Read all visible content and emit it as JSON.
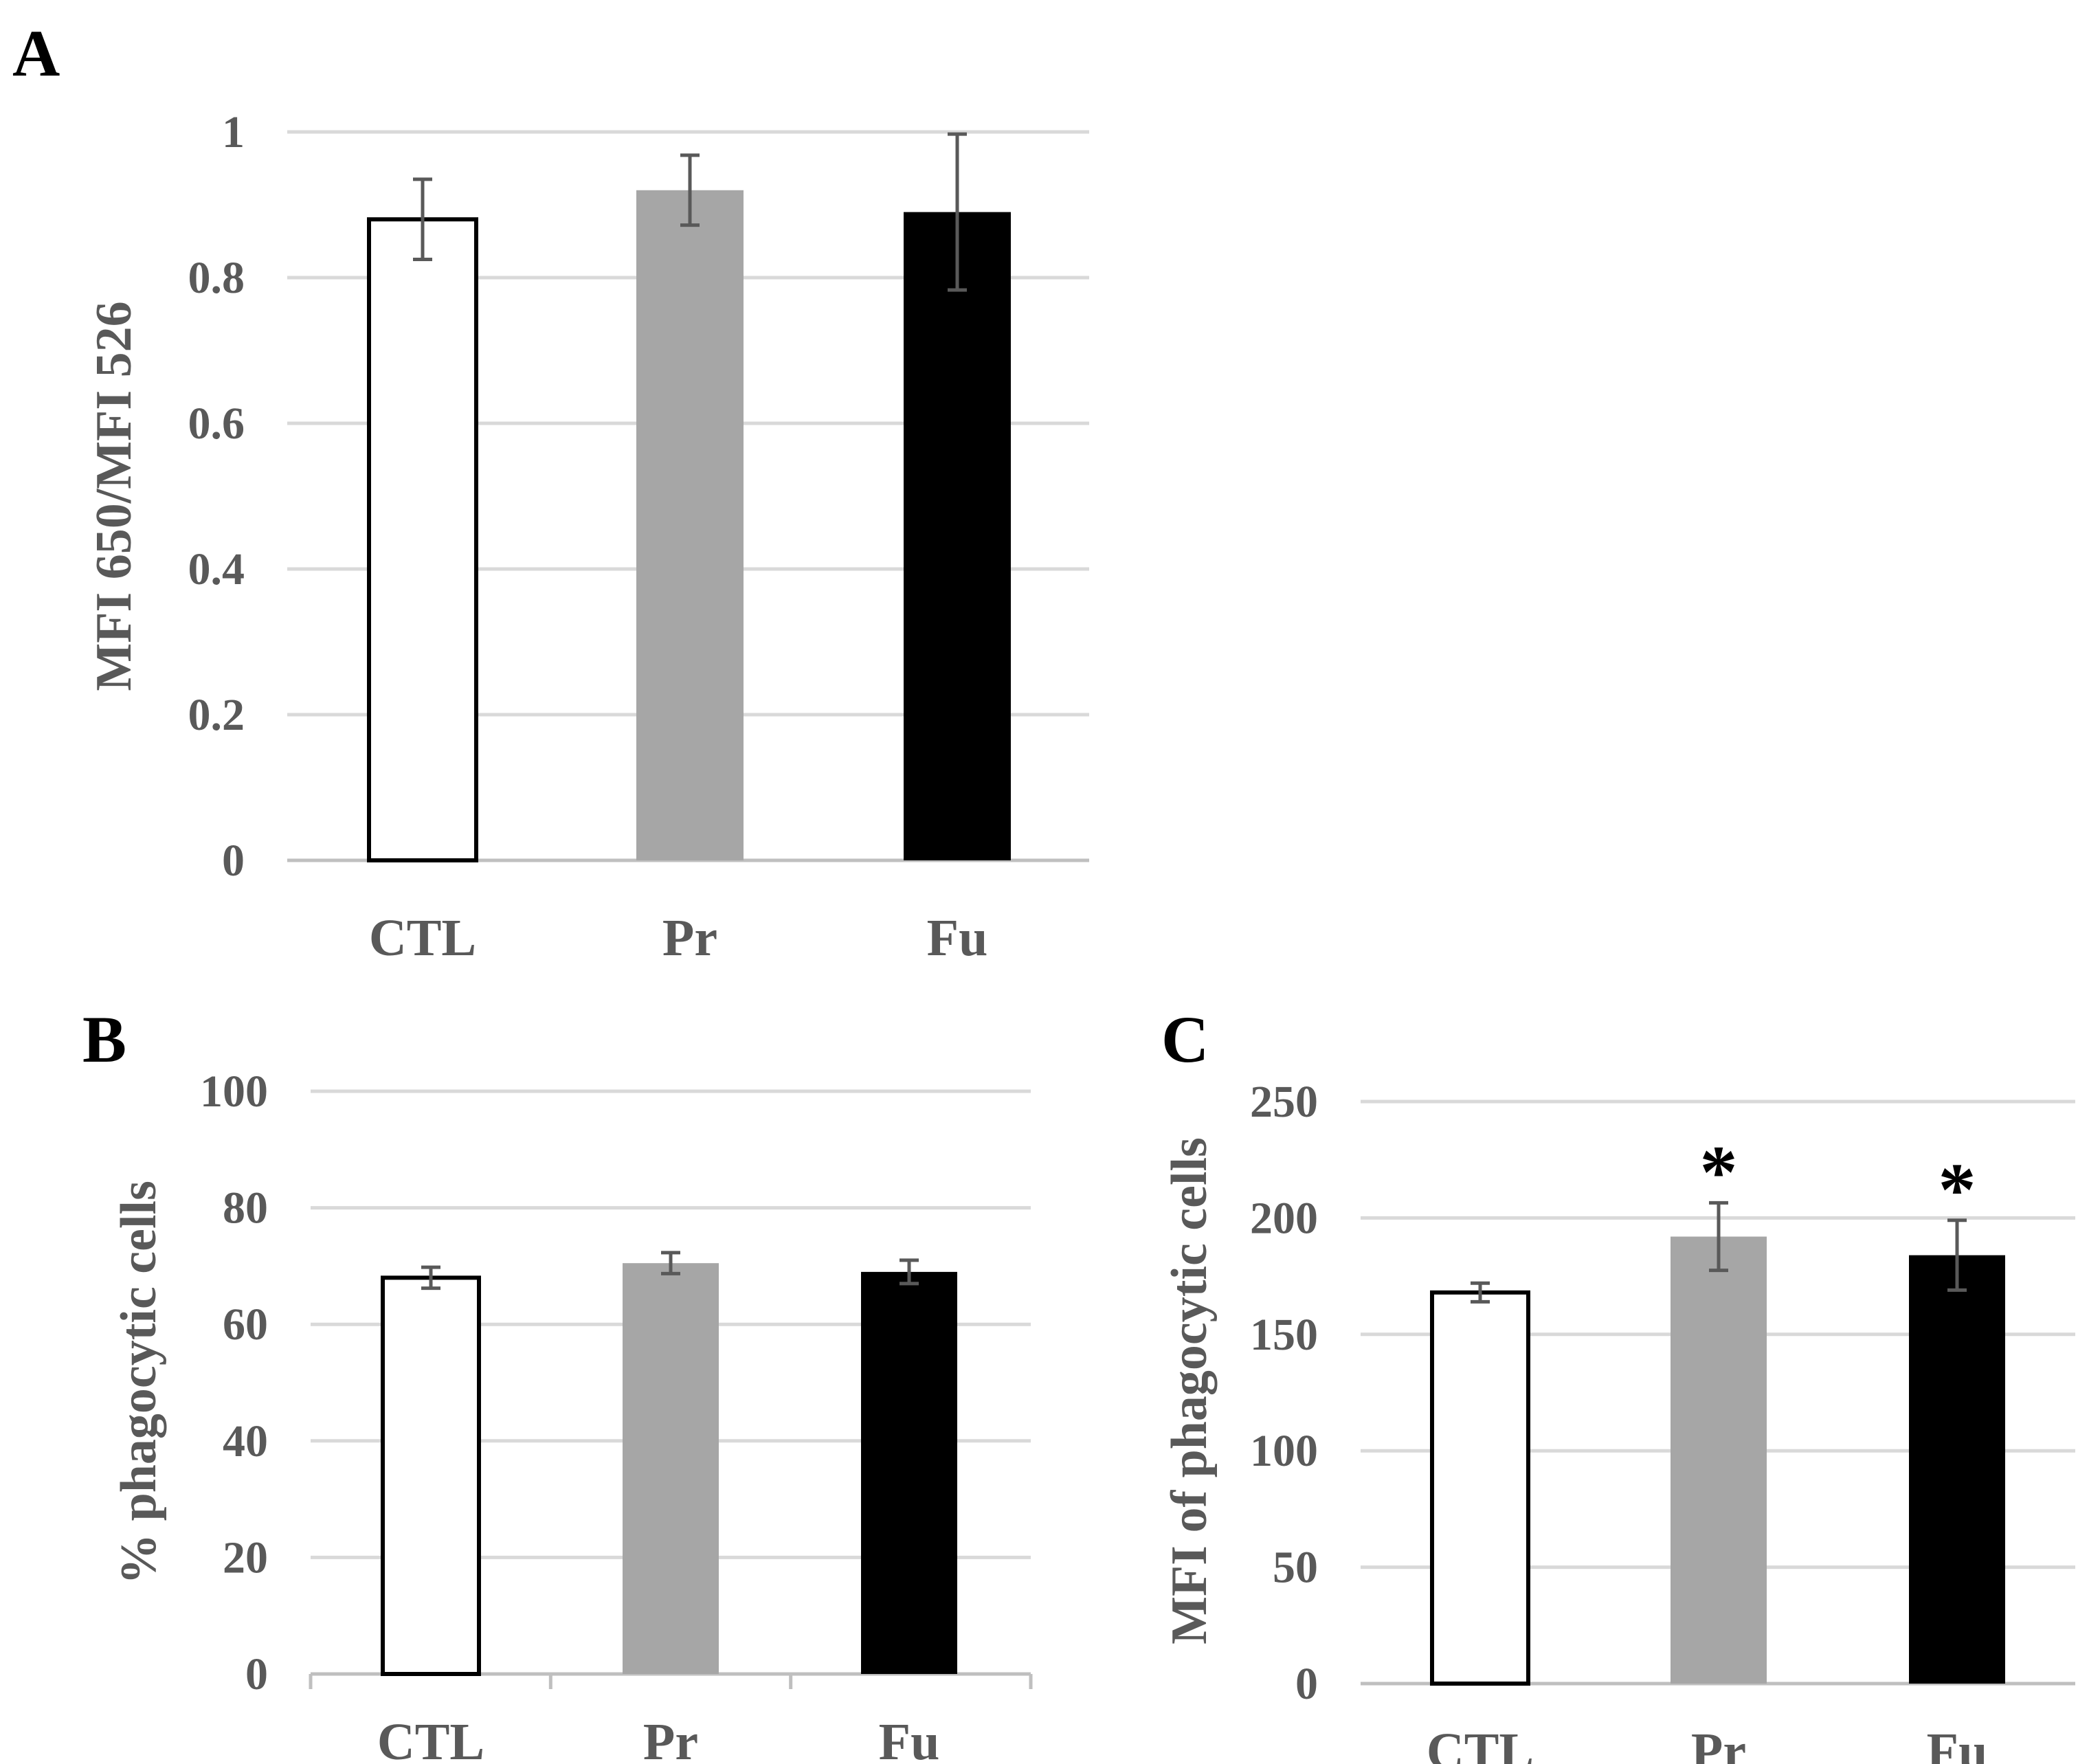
{
  "chart_data": [
    {
      "panel": "A",
      "type": "bar",
      "categories": [
        "CTL",
        "Pr",
        "Fu"
      ],
      "values": [
        0.88,
        0.92,
        0.89
      ],
      "errors": [
        0.055,
        0.048,
        0.107
      ],
      "significance": [
        "",
        "",
        ""
      ],
      "bar_colors": [
        "#ffffff",
        "#a6a6a6",
        "#000000"
      ],
      "ylabel": "MFI 650/MFI 526",
      "xlabel": "",
      "ylim": [
        0,
        1
      ],
      "yticks": [
        "0",
        "0.2",
        "0.4",
        "0.6",
        "0.8",
        "1"
      ],
      "grid": true
    },
    {
      "panel": "B",
      "type": "bar",
      "categories": [
        "CTL",
        "Pr",
        "Fu"
      ],
      "values": [
        68,
        70.5,
        69
      ],
      "errors": [
        1.8,
        1.8,
        2.0
      ],
      "significance": [
        "",
        "",
        ""
      ],
      "bar_colors": [
        "#ffffff",
        "#a6a6a6",
        "#000000"
      ],
      "ylabel": "% phagocytic cells",
      "xlabel": "",
      "ylim": [
        0,
        100
      ],
      "yticks": [
        "0",
        "20",
        "40",
        "60",
        "80",
        "100"
      ],
      "grid": true
    },
    {
      "panel": "C",
      "type": "bar",
      "categories": [
        "CTL",
        "Pr",
        "Fu"
      ],
      "values": [
        168,
        192,
        184
      ],
      "errors": [
        4,
        14.5,
        15
      ],
      "significance": [
        "",
        "*",
        "*"
      ],
      "bar_colors": [
        "#ffffff",
        "#a6a6a6",
        "#000000"
      ],
      "ylabel": "MFI of phagocytic cells",
      "xlabel": "",
      "ylim": [
        0,
        250
      ],
      "yticks": [
        "0",
        "50",
        "100",
        "150",
        "200",
        "250"
      ],
      "grid": true
    }
  ],
  "colors": {
    "grid": "#d9d9d9",
    "axis": "#bfbfbf",
    "text": "#595959",
    "bar_outline": "#000000",
    "error_bar": "#595959"
  }
}
